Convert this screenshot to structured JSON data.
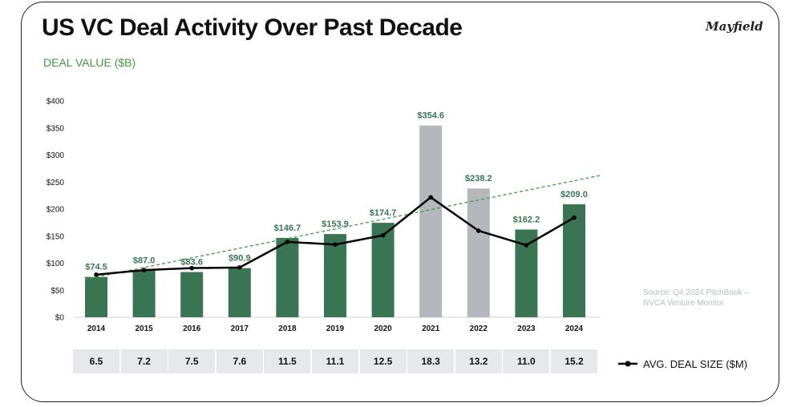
{
  "title": "US VC Deal Activity Over Past Decade",
  "logo": "Mayfield",
  "subtitle": "DEAL VALUE ($B)",
  "source": "Source: Q4 2024 PitchBook – NVCA Venture Monitor",
  "legend_label": "AVG. DEAL SIZE ($M)",
  "colors": {
    "bar_green": "#3a7553",
    "bar_gray": "#b4b8bd",
    "label_green": "#3a7553",
    "label_gray": "#3a7553",
    "trend_green": "#3e9a3e",
    "line_black": "#000000",
    "cell_bg": "#e6e8eb"
  },
  "chart_data": {
    "type": "bar",
    "categories": [
      "2014",
      "2015",
      "2016",
      "2017",
      "2018",
      "2019",
      "2020",
      "2021",
      "2022",
      "2023",
      "2024"
    ],
    "series": [
      {
        "name": "DEAL VALUE ($B)",
        "values": [
          74.5,
          87.0,
          83.6,
          90.9,
          146.7,
          153.9,
          174.7,
          354.6,
          238.2,
          162.2,
          209.0
        ],
        "labels": [
          "$74.5",
          "$87.0",
          "$83.6",
          "$90.9",
          "$146.7",
          "$153.9",
          "$174.7",
          "$354.6",
          "$238.2",
          "$162.2",
          "$209.0"
        ],
        "highlight": [
          "green",
          "green",
          "green",
          "green",
          "green",
          "green",
          "green",
          "gray",
          "gray",
          "green",
          "green"
        ]
      },
      {
        "name": "AVG. DEAL SIZE ($M)",
        "values": [
          6.5,
          7.2,
          7.5,
          7.6,
          11.5,
          11.1,
          12.5,
          18.3,
          13.2,
          11.0,
          15.2
        ],
        "labels": [
          "6.5",
          "7.2",
          "7.5",
          "7.6",
          "11.5",
          "11.1",
          "12.5",
          "18.3",
          "13.2",
          "11.0",
          "15.2"
        ]
      }
    ],
    "trendline": {
      "style": "dashed",
      "start": 70,
      "end": 262
    },
    "y_ticks": [
      "$0",
      "$50",
      "$100",
      "$150",
      "$200",
      "$250",
      "$300",
      "$350",
      "$400"
    ],
    "y_tick_values": [
      0,
      50,
      100,
      150,
      200,
      250,
      300,
      350,
      400
    ],
    "ylim": [
      0,
      400
    ],
    "grid": false
  }
}
